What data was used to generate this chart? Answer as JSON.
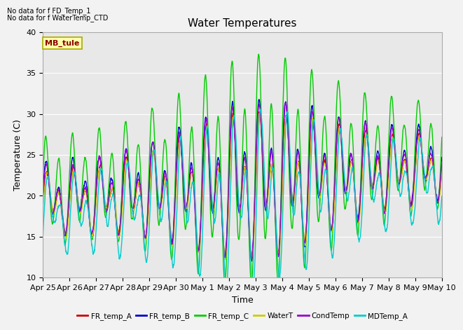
{
  "title": "Water Temperatures",
  "ylabel": "Temperature (C)",
  "xlabel": "Time",
  "ylim": [
    10,
    40
  ],
  "xlim": [
    0,
    15
  ],
  "plot_bg_color": "#e8e8e8",
  "fig_bg_color": "#f2f2f2",
  "no_data_text": [
    "No data for f FD_Temp_1",
    "No data for f WaterTemp_CTD"
  ],
  "mb_tule_label": "MB_tule",
  "legend_entries": [
    {
      "label": "FR_temp_A",
      "color": "#cc0000"
    },
    {
      "label": "FR_temp_B",
      "color": "#0000cc"
    },
    {
      "label": "FR_temp_C",
      "color": "#00cc00"
    },
    {
      "label": "WaterT",
      "color": "#cccc00"
    },
    {
      "label": "CondTemp",
      "color": "#9900cc"
    },
    {
      "label": "MDTemp_A",
      "color": "#00cccc"
    }
  ],
  "xtick_labels": [
    "Apr 25",
    "Apr 26",
    "Apr 27",
    "Apr 28",
    "Apr 29",
    "Apr 30",
    "May 1",
    "May 2",
    "May 3",
    "May 4",
    "May 5",
    "May 6",
    "May 7",
    "May 8",
    "May 9",
    "May 10"
  ],
  "xtick_positions": [
    0,
    1,
    2,
    3,
    4,
    5,
    6,
    7,
    8,
    9,
    10,
    11,
    12,
    13,
    14,
    15
  ],
  "ytick_positions": [
    10,
    15,
    20,
    25,
    30,
    35,
    40
  ],
  "linewidth": 1.0
}
